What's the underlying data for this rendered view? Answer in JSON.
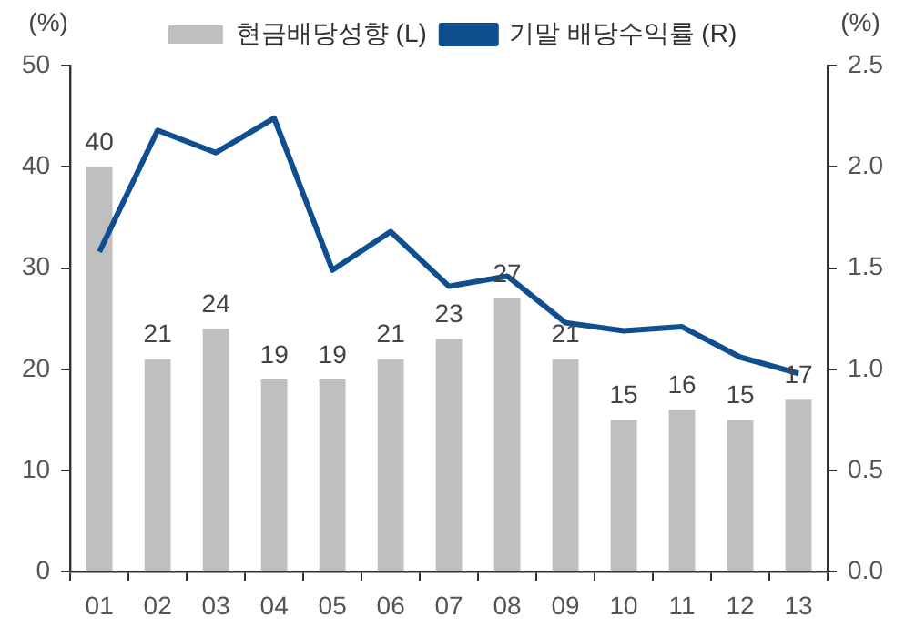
{
  "chart_data": {
    "type": "bar",
    "categories": [
      "01",
      "02",
      "03",
      "04",
      "05",
      "06",
      "07",
      "08",
      "09",
      "10",
      "11",
      "12",
      "13"
    ],
    "series": [
      {
        "name": "현금배당성향 (L)",
        "color": "#bfbfbf",
        "values": [
          40,
          21,
          24,
          19,
          19,
          21,
          23,
          27,
          21,
          15,
          16,
          15,
          17
        ],
        "value_labels": [
          "40",
          "21",
          "24",
          "19",
          "19",
          "21",
          "23",
          "27",
          "21",
          "15",
          "16",
          "15",
          "17"
        ]
      },
      {
        "name": "기말 배당수익률 (R)",
        "type": "line",
        "axis": "y2",
        "color": "#0f4e8f",
        "values": [
          1.58,
          2.18,
          2.07,
          2.24,
          1.49,
          1.68,
          1.41,
          1.46,
          1.23,
          1.19,
          1.21,
          1.06,
          0.98
        ]
      }
    ],
    "ylabel": "(%)",
    "y2label": "(%)",
    "ylim": [
      0,
      50
    ],
    "yticks": [
      0,
      10,
      20,
      30,
      40,
      50
    ],
    "y2lim": [
      0,
      2.5
    ],
    "y2ticks": [
      {
        "value": 0,
        "label": "0.0"
      },
      {
        "value": 0.5,
        "label": "0.5"
      },
      {
        "value": 1,
        "label": "1.0"
      },
      {
        "value": 1.5,
        "label": "1.5"
      },
      {
        "value": 2,
        "label": "2.0"
      },
      {
        "value": 2.5,
        "label": "2.5"
      }
    ],
    "legend": "top",
    "grid": false,
    "marker": "none",
    "line_style": "solid"
  }
}
